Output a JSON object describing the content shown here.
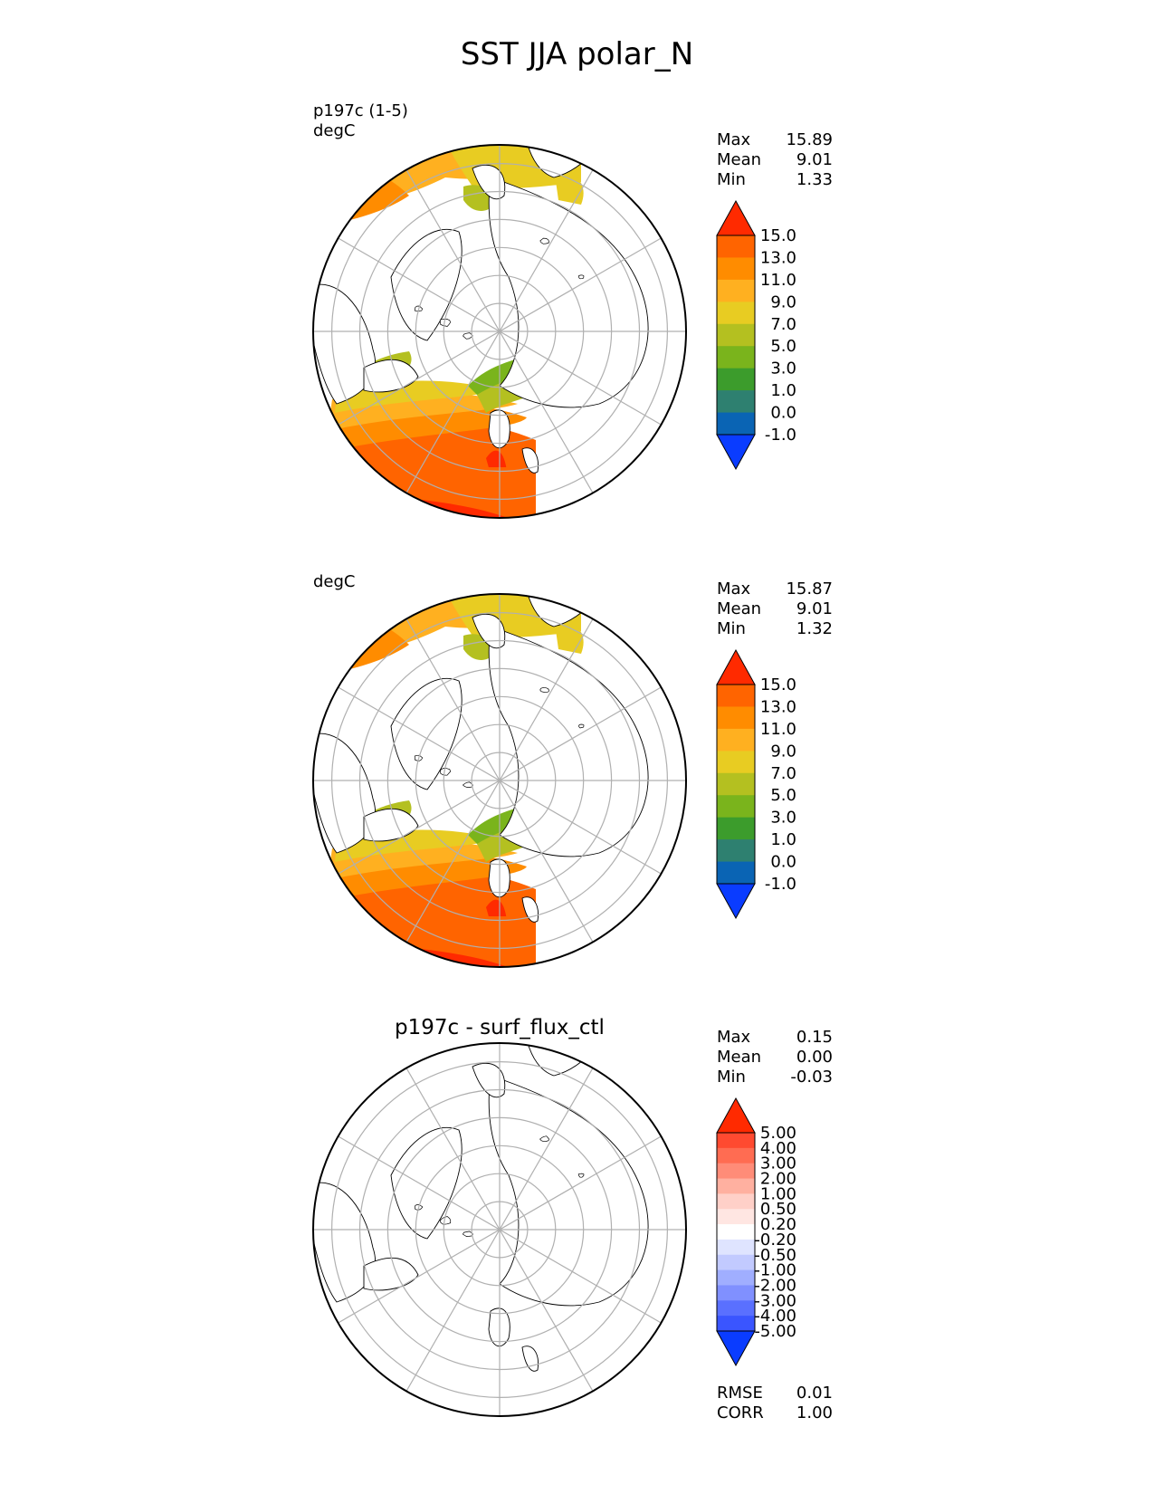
{
  "title": "SST JJA polar_N",
  "panels": [
    {
      "id": "test",
      "label_lines": [
        "p197c (1-5)",
        "degC"
      ],
      "title": "",
      "stats": [
        {
          "label": "Max",
          "value": "15.89"
        },
        {
          "label": "Mean",
          "value": "9.01"
        },
        {
          "label": "Min",
          "value": "1.33"
        }
      ],
      "metrics": [],
      "colorbar": {
        "ticks": [
          "15.0",
          "13.0",
          "11.0",
          "9.0",
          "7.0",
          "5.0",
          "3.0",
          "1.0",
          "0.0",
          "-1.0"
        ],
        "colors": [
          "#ff2a00",
          "#ff6400",
          "#ff8c00",
          "#ffb020",
          "#e8cc22",
          "#b4c020",
          "#7ab41c",
          "#3c9c2c",
          "#2e8070",
          "#0a64b4",
          "#0a3cff"
        ]
      }
    },
    {
      "id": "reference",
      "label_lines": [
        "degC"
      ],
      "title": "",
      "stats": [
        {
          "label": "Max",
          "value": "15.87"
        },
        {
          "label": "Mean",
          "value": "9.01"
        },
        {
          "label": "Min",
          "value": "1.32"
        }
      ],
      "metrics": [],
      "colorbar": {
        "ticks": [
          "15.0",
          "13.0",
          "11.0",
          "9.0",
          "7.0",
          "5.0",
          "3.0",
          "1.0",
          "0.0",
          "-1.0"
        ],
        "colors": [
          "#ff2a00",
          "#ff6400",
          "#ff8c00",
          "#ffb020",
          "#e8cc22",
          "#b4c020",
          "#7ab41c",
          "#3c9c2c",
          "#2e8070",
          "#0a64b4",
          "#0a3cff"
        ]
      }
    },
    {
      "id": "difference",
      "label_lines": [],
      "title": "p197c - surf_flux_ctl",
      "stats": [
        {
          "label": "Max",
          "value": "0.15"
        },
        {
          "label": "Mean",
          "value": "0.00"
        },
        {
          "label": "Min",
          "value": "-0.03"
        }
      ],
      "metrics": [
        {
          "label": "RMSE",
          "value": "0.01"
        },
        {
          "label": "CORR",
          "value": "1.00"
        }
      ],
      "colorbar": {
        "ticks": [
          "5.00",
          "4.00",
          "3.00",
          "2.00",
          "1.00",
          "0.50",
          "0.20",
          "-0.20",
          "-0.50",
          "-1.00",
          "-2.00",
          "-3.00",
          "-4.00",
          "-5.00"
        ],
        "colors": [
          "#ff2a00",
          "#ff4a30",
          "#ff6c52",
          "#ff8c78",
          "#ffb0a0",
          "#ffd0c8",
          "#ffe6e2",
          "#ffffff",
          "#dfe4ff",
          "#c2caff",
          "#a0aeff",
          "#8090ff",
          "#5a70ff",
          "#3a55ff",
          "#0a3cff"
        ]
      }
    }
  ]
}
